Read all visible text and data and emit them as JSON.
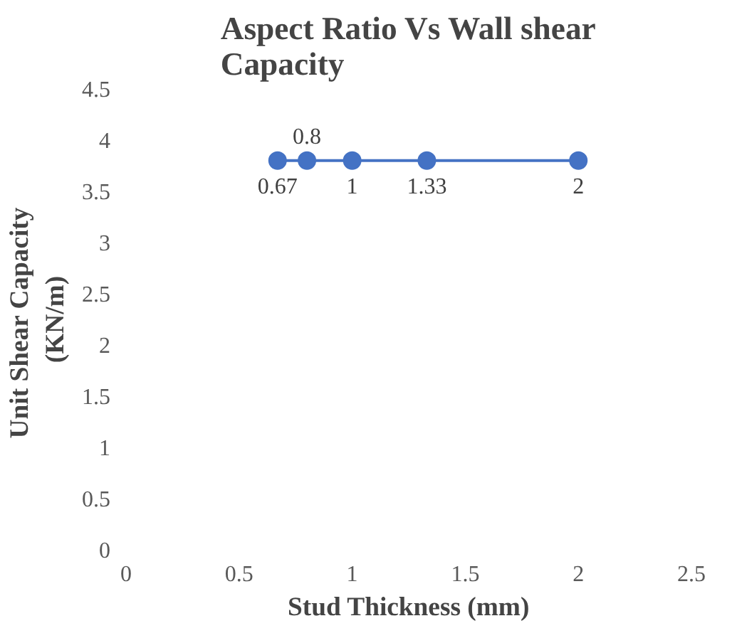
{
  "chart_data": {
    "type": "line",
    "title": "Aspect Ratio Vs Wall shear\nCapacity",
    "xlabel": "Stud Thickness (mm)",
    "ylabel": "Unit  Shear Capacity\n(KN/m)",
    "x": [
      0.67,
      0.8,
      1,
      1.33,
      2
    ],
    "series": [
      {
        "color": "#4472c4",
        "values": [
          3.8,
          3.8,
          3.8,
          3.8,
          3.8
        ]
      }
    ],
    "annotations": [
      {
        "text": "0.67",
        "x": 0.67,
        "y": 3.8
      },
      {
        "text": "0.8",
        "x": 0.8,
        "y": 3.8
      },
      {
        "text": "1",
        "x": 1,
        "y": 3.8
      },
      {
        "text": "1.33",
        "x": 1.33,
        "y": 3.8
      },
      {
        "text": "2",
        "x": 2,
        "y": 3.8
      }
    ],
    "xlim": [
      0,
      2.5
    ],
    "ylim": [
      0,
      4.5
    ],
    "xticks": [
      0,
      0.5,
      1,
      1.5,
      2,
      2.5
    ],
    "yticks": [
      0,
      0.5,
      1,
      1.5,
      2,
      2.5,
      3,
      3.5,
      4,
      4.5
    ],
    "marker": "circle",
    "line_style": "solid"
  }
}
